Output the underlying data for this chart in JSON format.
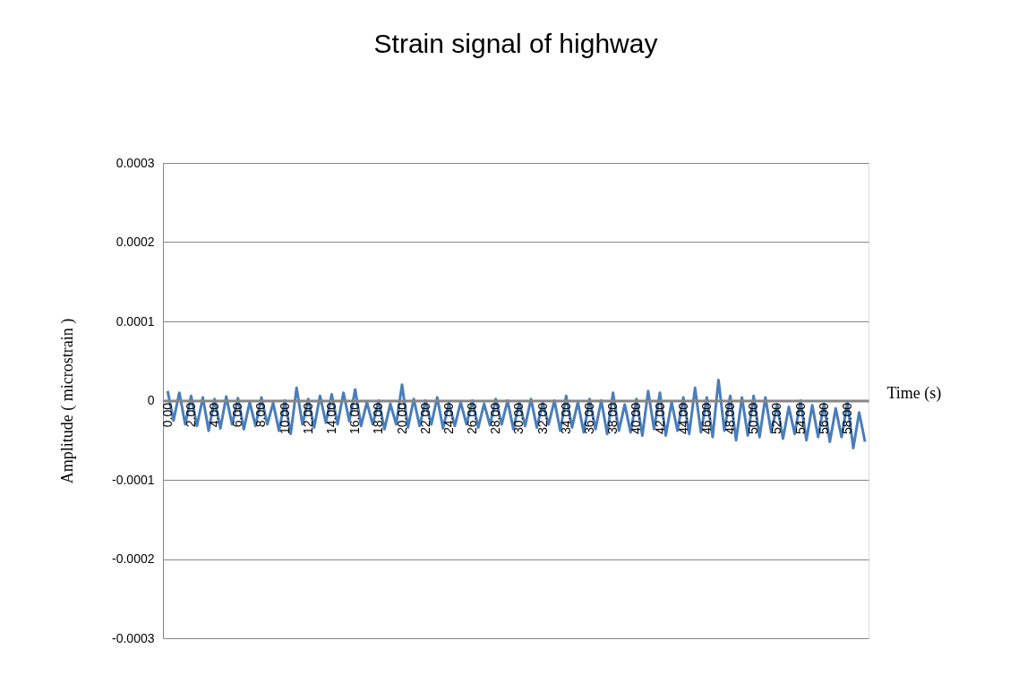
{
  "chart_data": {
    "type": "line",
    "title": "Strain signal of highway",
    "xlabel": "Time (s)",
    "ylabel": "Amplitude ( microstrain )",
    "xlim": [
      -0.4,
      59.8
    ],
    "xticks": [
      {
        "value": 0,
        "label": "0.00"
      },
      {
        "value": 2,
        "label": "2.00"
      },
      {
        "value": 4,
        "label": "4.00"
      },
      {
        "value": 6,
        "label": "6.00"
      },
      {
        "value": 8,
        "label": "8.00"
      },
      {
        "value": 10,
        "label": "10.00"
      },
      {
        "value": 12,
        "label": "12.00"
      },
      {
        "value": 14,
        "label": "14.00"
      },
      {
        "value": 16,
        "label": "16.00"
      },
      {
        "value": 18,
        "label": "18.00"
      },
      {
        "value": 20,
        "label": "20.00"
      },
      {
        "value": 22,
        "label": "22.00"
      },
      {
        "value": 24,
        "label": "24.00"
      },
      {
        "value": 26,
        "label": "26.00"
      },
      {
        "value": 28,
        "label": "28.00"
      },
      {
        "value": 30,
        "label": "30.00"
      },
      {
        "value": 32,
        "label": "32.00"
      },
      {
        "value": 34,
        "label": "34.00"
      },
      {
        "value": 36,
        "label": "36.00"
      },
      {
        "value": 38,
        "label": "38.00"
      },
      {
        "value": 40,
        "label": "40.00"
      },
      {
        "value": 42,
        "label": "42.00"
      },
      {
        "value": 44,
        "label": "44.00"
      },
      {
        "value": 46,
        "label": "46.00"
      },
      {
        "value": 48,
        "label": "48.00"
      },
      {
        "value": 50,
        "label": "50.00"
      },
      {
        "value": 52,
        "label": "52.00"
      },
      {
        "value": 54,
        "label": "54.00"
      },
      {
        "value": 56,
        "label": "56.00"
      },
      {
        "value": 58,
        "label": "58.00"
      }
    ],
    "ylim": [
      -0.0003,
      0.0003
    ],
    "yticks": [
      -0.0003,
      -0.0002,
      -0.0001,
      0,
      0.0001,
      0.0002,
      0.0003
    ],
    "grid": "y",
    "marker": "none",
    "line_style": "solid",
    "x": [
      0,
      0.5,
      1,
      1.5,
      2,
      2.5,
      3,
      3.5,
      4,
      4.5,
      5,
      5.5,
      6,
      6.5,
      7,
      7.5,
      8,
      8.5,
      9,
      9.5,
      10,
      10.5,
      11,
      11.5,
      12,
      12.5,
      13,
      13.5,
      14,
      14.5,
      15,
      15.5,
      16,
      16.5,
      17,
      17.5,
      18,
      18.5,
      19,
      19.5,
      20,
      20.5,
      21,
      21.5,
      22,
      22.5,
      23,
      23.5,
      24,
      24.5,
      25,
      25.5,
      26,
      26.5,
      27,
      27.5,
      28,
      28.5,
      29,
      29.5,
      30,
      30.5,
      31,
      31.5,
      32,
      32.5,
      33,
      33.5,
      34,
      34.5,
      35,
      35.5,
      36,
      36.5,
      37,
      37.5,
      38,
      38.5,
      39,
      39.5,
      40,
      40.5,
      41,
      41.5,
      42,
      42.5,
      43,
      43.5,
      44,
      44.5,
      45,
      45.5,
      46,
      46.5,
      47,
      47.5,
      48,
      48.5,
      49,
      49.5,
      50,
      50.5,
      51,
      51.5,
      52,
      52.5,
      53,
      53.5,
      54,
      54.5,
      55,
      55.5,
      56,
      56.5,
      57,
      57.5,
      58,
      58.5,
      59,
      59.5
    ],
    "series": [
      {
        "color": "#4a7ebb",
        "values": [
          1.2e-05,
          -2.5e-05,
          1e-05,
          -3e-05,
          6e-06,
          -3.2e-05,
          4e-06,
          -3.8e-05,
          2e-06,
          -3.5e-05,
          5e-06,
          -3e-05,
          3e-06,
          -3.6e-05,
          -2e-06,
          -3.2e-05,
          4e-06,
          -3e-05,
          -3e-06,
          -3.8e-05,
          0.0,
          -4.2e-05,
          1.6e-05,
          -3e-05,
          2e-06,
          -3.4e-05,
          6e-06,
          -2.8e-05,
          8e-06,
          -3e-05,
          1e-05,
          -2.6e-05,
          1.4e-05,
          -3.2e-05,
          -2e-06,
          -3e-05,
          0.0,
          -3.6e-05,
          -4e-06,
          -3e-05,
          2e-05,
          -3.4e-05,
          2e-06,
          -3.2e-05,
          0.0,
          -3e-05,
          4e-06,
          -3.5e-05,
          -3e-06,
          -3.2e-05,
          -2e-06,
          -3e-05,
          0.0,
          -3.4e-05,
          -4e-06,
          -3.1e-05,
          2e-06,
          -3e-05,
          0.0,
          -3.6e-05,
          -2e-06,
          -3.2e-05,
          2e-06,
          -3.4e-05,
          -3e-06,
          -3e-05,
          0.0,
          -3.8e-05,
          6e-06,
          -3.4e-05,
          -2e-06,
          -4e-05,
          2e-06,
          -3.6e-05,
          0.0,
          -4.2e-05,
          1e-05,
          -3.8e-05,
          -5e-06,
          -4e-05,
          2e-06,
          -4.4e-05,
          1.2e-05,
          -3.6e-05,
          1e-05,
          -4.4e-05,
          -2e-06,
          -3.8e-05,
          4e-06,
          -4.2e-05,
          1.6e-05,
          -4e-05,
          4e-06,
          -4.6e-05,
          2.6e-05,
          -3.8e-05,
          6e-06,
          -5e-05,
          4e-06,
          -4.4e-05,
          6e-06,
          -4.6e-05,
          4e-06,
          -4e-05,
          -5e-06,
          -4.8e-05,
          -8e-06,
          -4.2e-05,
          0.0,
          -5e-05,
          -6e-06,
          -4.6e-05,
          -4e-06,
          -5.2e-05,
          -1e-05,
          -4.6e-05,
          -2e-06,
          -6e-05,
          -1.5e-05,
          -5.2e-05
        ]
      }
    ]
  }
}
